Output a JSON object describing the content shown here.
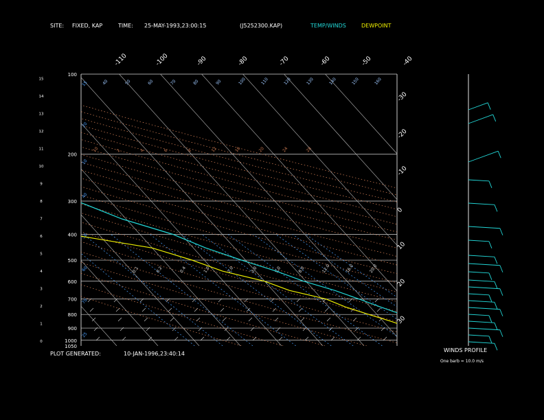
{
  "header": {
    "site_label": "SITE:",
    "site_value": "FIXED, KAP",
    "time_label": "TIME:",
    "time_value": "25-MAY-1993,23:00:15",
    "file_id": "(J5252300.KAP)",
    "legend_temp": "TEMP/WINDS",
    "legend_dew": "DEWPOINT"
  },
  "footer": {
    "generated_label": "PLOT GENERATED:",
    "generated_value": "10-JAN-1996,23:40:14",
    "winds_title": "WINDS PROFILE",
    "winds_scale": "One barb = 10.0 m/s"
  },
  "colors": {
    "temperature": "#22d8d8",
    "dewpoint": "#f0f000",
    "grid": "#ffffff",
    "mixing": "#4aa0ff",
    "adiabat": "#c87850"
  },
  "chart_data": {
    "type": "line",
    "title": "",
    "pressure_ticks": [
      100,
      200,
      300,
      400,
      500,
      600,
      700,
      800,
      900,
      1000,
      1050
    ],
    "km_ticks": [
      0,
      1,
      2,
      3,
      4,
      5,
      6,
      7,
      8,
      9,
      10,
      11,
      12,
      13,
      14,
      15
    ],
    "top_temp_ticks": [
      -110,
      -100,
      -90,
      -80,
      -70,
      -60,
      -50,
      -40
    ],
    "right_temp_ticks": [
      -30,
      -20,
      -10,
      0,
      10,
      20,
      30
    ],
    "mixing_labels": [
      "0.1",
      "0.2",
      "0.4",
      "1.0",
      "2.0",
      "3.0",
      "5.0",
      "8.0",
      "12.0",
      "16.0",
      "20.0"
    ],
    "theta_labels": [
      "10",
      "2",
      "4",
      "6",
      "8",
      "12",
      "16",
      "20",
      "24",
      "28"
    ],
    "top_labels": [
      "40",
      "50",
      "60",
      "70",
      "80",
      "90",
      "100",
      "110",
      "120",
      "130",
      "140",
      "150",
      "160"
    ],
    "series": [
      {
        "name": "TEMP/WINDS",
        "pressure": [
          1000,
          950,
          900,
          850,
          800,
          750,
          700,
          650,
          600,
          550,
          500,
          450,
          400,
          350,
          300,
          250,
          200,
          175,
          150,
          125,
          100
        ],
        "temperature": [
          30,
          26,
          22.5,
          19,
          16,
          12.5,
          9,
          5,
          -0.5,
          -5,
          -11,
          -17,
          -22,
          -31,
          -38,
          -44,
          -53,
          -55,
          -55,
          -60,
          -65
        ]
      },
      {
        "name": "DEWPOINT",
        "pressure": [
          1000,
          975,
          950,
          900,
          850,
          800,
          750,
          700,
          650,
          600,
          550,
          500,
          450,
          400,
          350,
          300,
          250,
          200,
          175,
          150,
          125,
          100
        ],
        "dewpoint": [
          20,
          19,
          17,
          15,
          12,
          8,
          4,
          1,
          -6,
          -10,
          -18,
          -23,
          -30,
          -47,
          -53,
          -58,
          -57,
          -58,
          -63,
          -78,
          -84,
          -86
        ]
      }
    ]
  }
}
